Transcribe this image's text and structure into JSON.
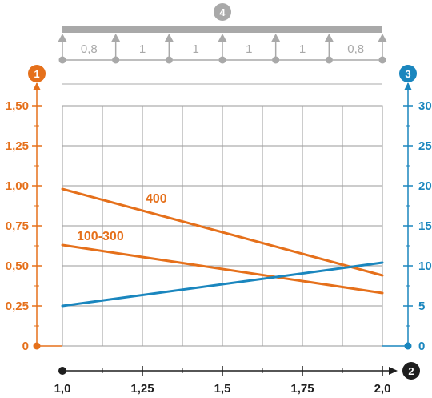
{
  "chart_data": {
    "type": "line",
    "x_ticks": [
      "1,0",
      "1,25",
      "1,5",
      "1,75",
      "2,0"
    ],
    "xlim": [
      1.0,
      2.0
    ],
    "y_left_ticks": [
      "0",
      "0,25",
      "0,50",
      "0,75",
      "1,00",
      "1,25",
      "1,50"
    ],
    "ylim_left": [
      0,
      1.5
    ],
    "y_right_ticks": [
      "0",
      "5",
      "10",
      "15",
      "20",
      "25",
      "30"
    ],
    "ylim_right": [
      0,
      30
    ],
    "grid": true,
    "series": [
      {
        "name": "400",
        "axis": "left",
        "color": "#e5701b",
        "x": [
          1.0,
          2.0
        ],
        "y": [
          0.98,
          0.44
        ]
      },
      {
        "name": "100-300",
        "axis": "left",
        "color": "#e5701b",
        "x": [
          1.0,
          2.0
        ],
        "y": [
          0.63,
          0.33
        ]
      },
      {
        "axis": "right",
        "color": "#1a86be",
        "x": [
          1.0,
          2.0
        ],
        "y": [
          5.0,
          10.4
        ]
      }
    ],
    "badges": {
      "left_axis": "1",
      "x_axis": "2",
      "right_axis": "3",
      "beam": "4"
    },
    "support_spans": [
      "0,8",
      "1",
      "1",
      "1",
      "1",
      "0,8"
    ],
    "colors": {
      "orange": "#e5701b",
      "blue": "#1a86be",
      "grey": "#a9a9a9",
      "dark": "#1e1e1e"
    }
  }
}
